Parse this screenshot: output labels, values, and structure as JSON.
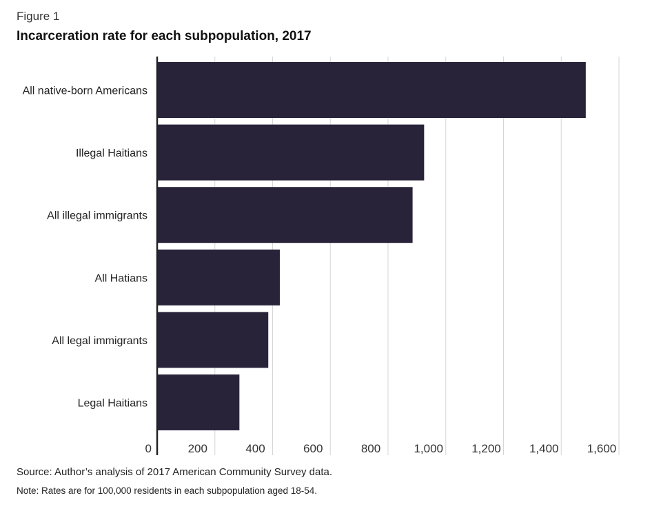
{
  "figure_label": "Figure 1",
  "colors": {
    "bar": "#29233a",
    "grid": "#d6d6d6",
    "axis": "#222222"
  },
  "chart_data": {
    "type": "bar",
    "orientation": "horizontal",
    "title": "Incarceration rate for each subpopulation, 2017",
    "categories": [
      "All native-born Americans",
      "Illegal Haitians",
      "All illegal immigrants",
      "All Hatians",
      "All legal immigrants",
      "Legal Haitians"
    ],
    "values": [
      1485,
      925,
      885,
      425,
      385,
      285
    ],
    "xlim": [
      0,
      1600
    ],
    "xticks": [
      0,
      200,
      400,
      600,
      800,
      1000,
      1200,
      1400,
      1600
    ],
    "xtick_labels": [
      "0",
      "200",
      "400",
      "600",
      "800",
      "1,000",
      "1,200",
      "1,400",
      "1,600"
    ],
    "grid": "vertical"
  },
  "source": "Source: Author’s analysis of 2017 American Community Survey data.",
  "note": "Note: Rates are for 100,000 residents in each subpopulation aged 18-54."
}
